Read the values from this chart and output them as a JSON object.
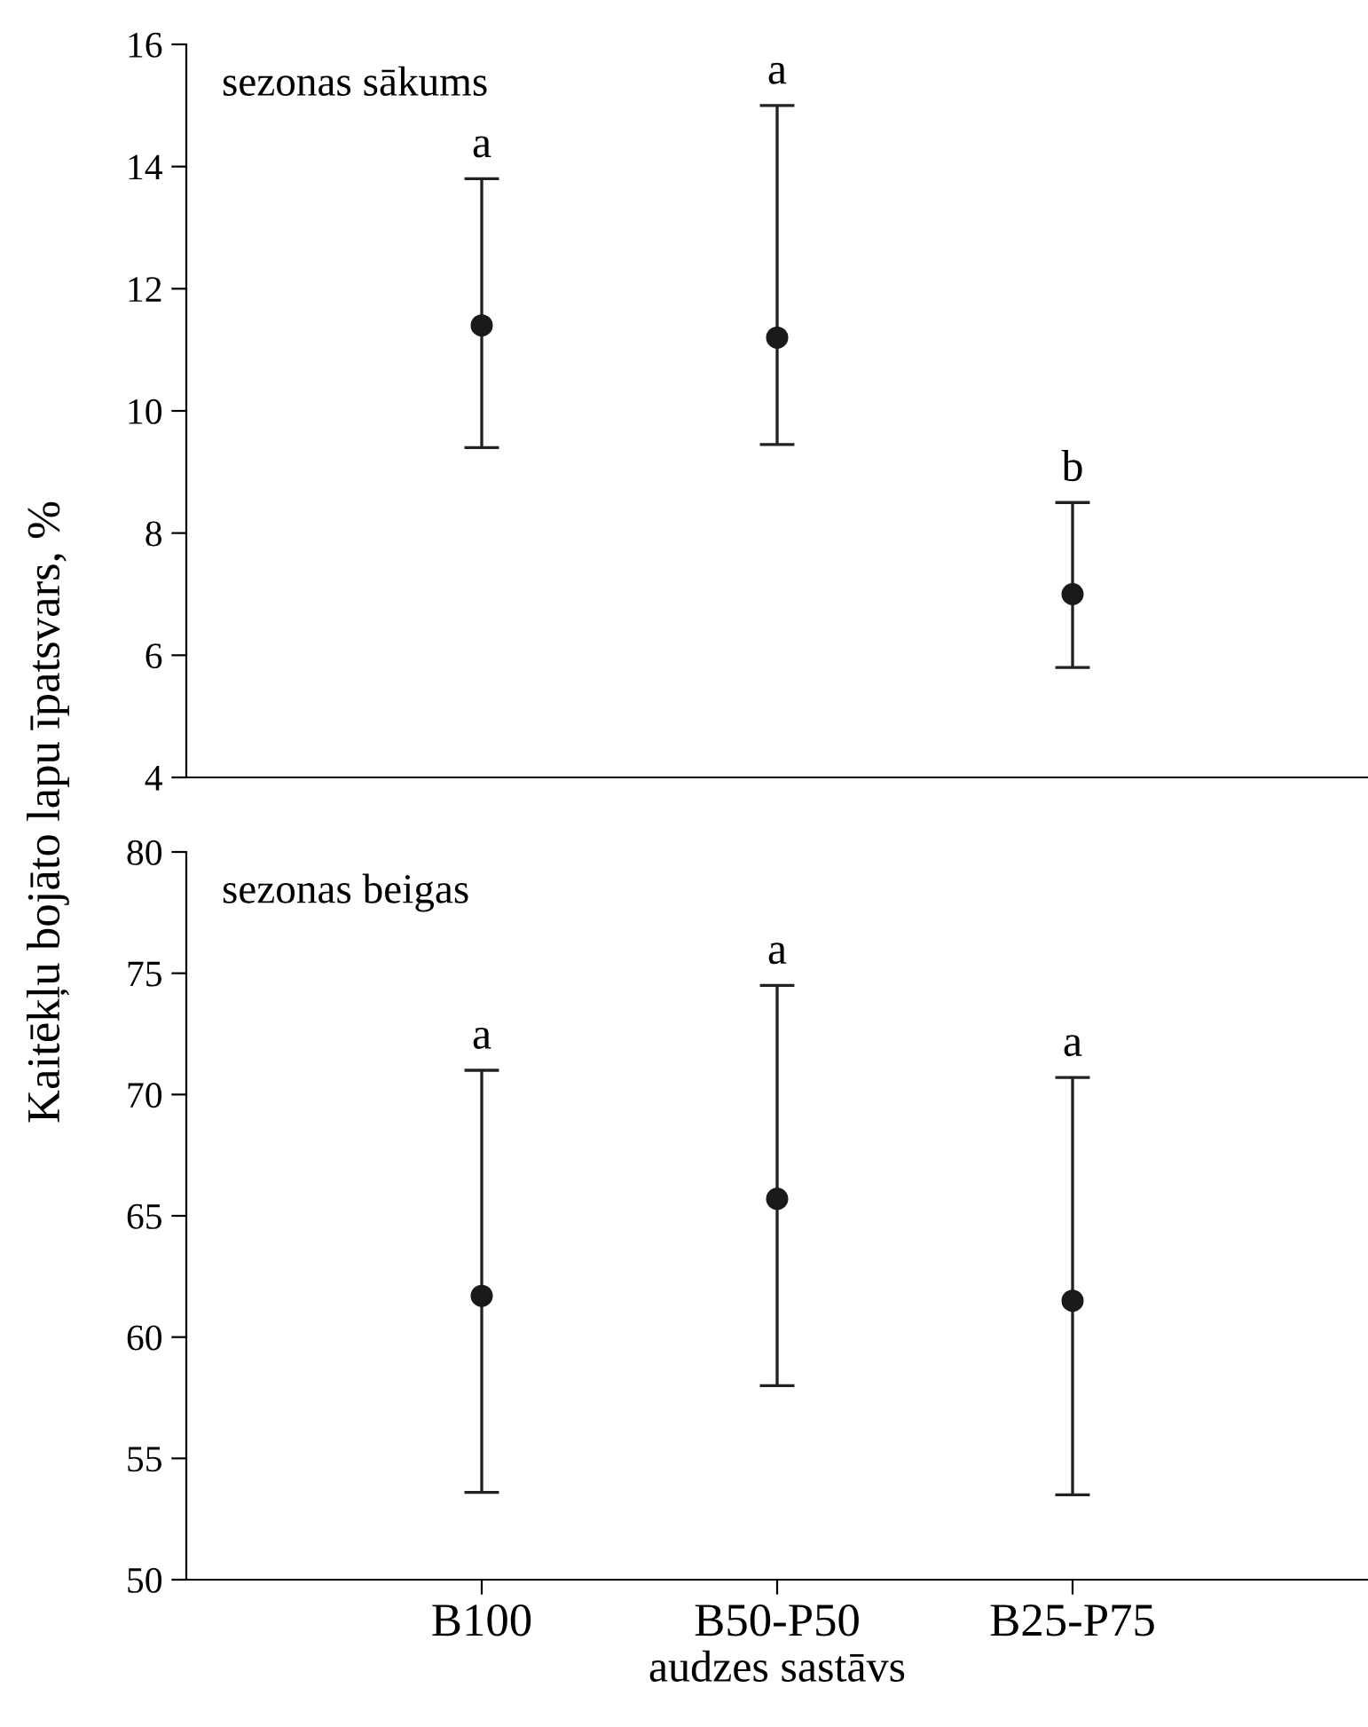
{
  "chart_data": [
    {
      "type": "scatter",
      "title": "sezonas sākums",
      "ylabel": "Kaitēkļu bojāto lapu īpatsvars, %",
      "categories": [
        "B100",
        "B50-P50",
        "B25-P75"
      ],
      "tick_labels": "y",
      "marker": "circle",
      "ylim": [
        4,
        16
      ],
      "yticks": [
        4,
        6,
        8,
        10,
        12,
        14,
        16
      ],
      "series": [
        {
          "color": "#1a1a1a",
          "values": [
            11.4,
            11.2,
            7.0
          ],
          "errors": [
            [
              9.4,
              13.8
            ],
            [
              9.45,
              15.0
            ],
            [
              5.8,
              8.5
            ]
          ]
        }
      ],
      "annotations": [
        {
          "text": "a",
          "x": "B100",
          "y": 13.8
        },
        {
          "text": "a",
          "x": "B50-P50",
          "y": 15.0
        },
        {
          "text": "b",
          "x": "B25-P75",
          "y": 8.5
        }
      ]
    },
    {
      "type": "scatter",
      "title": "sezonas beigas",
      "xlabel": "audzes sastāvs",
      "categories": [
        "B100",
        "B50-P50",
        "B25-P75"
      ],
      "marker": "circle",
      "ylim": [
        50,
        80
      ],
      "yticks": [
        50,
        55,
        60,
        65,
        70,
        75,
        80
      ],
      "series": [
        {
          "color": "#1a1a1a",
          "values": [
            61.7,
            65.7,
            61.5
          ],
          "errors": [
            [
              53.6,
              71.0
            ],
            [
              58.0,
              74.5
            ],
            [
              53.5,
              70.7
            ]
          ]
        }
      ],
      "annotations": [
        {
          "text": "a",
          "x": "B100",
          "y": 71.0
        },
        {
          "text": "a",
          "x": "B50-P50",
          "y": 74.5
        },
        {
          "text": "a",
          "x": "B25-P75",
          "y": 70.7
        }
      ]
    }
  ]
}
